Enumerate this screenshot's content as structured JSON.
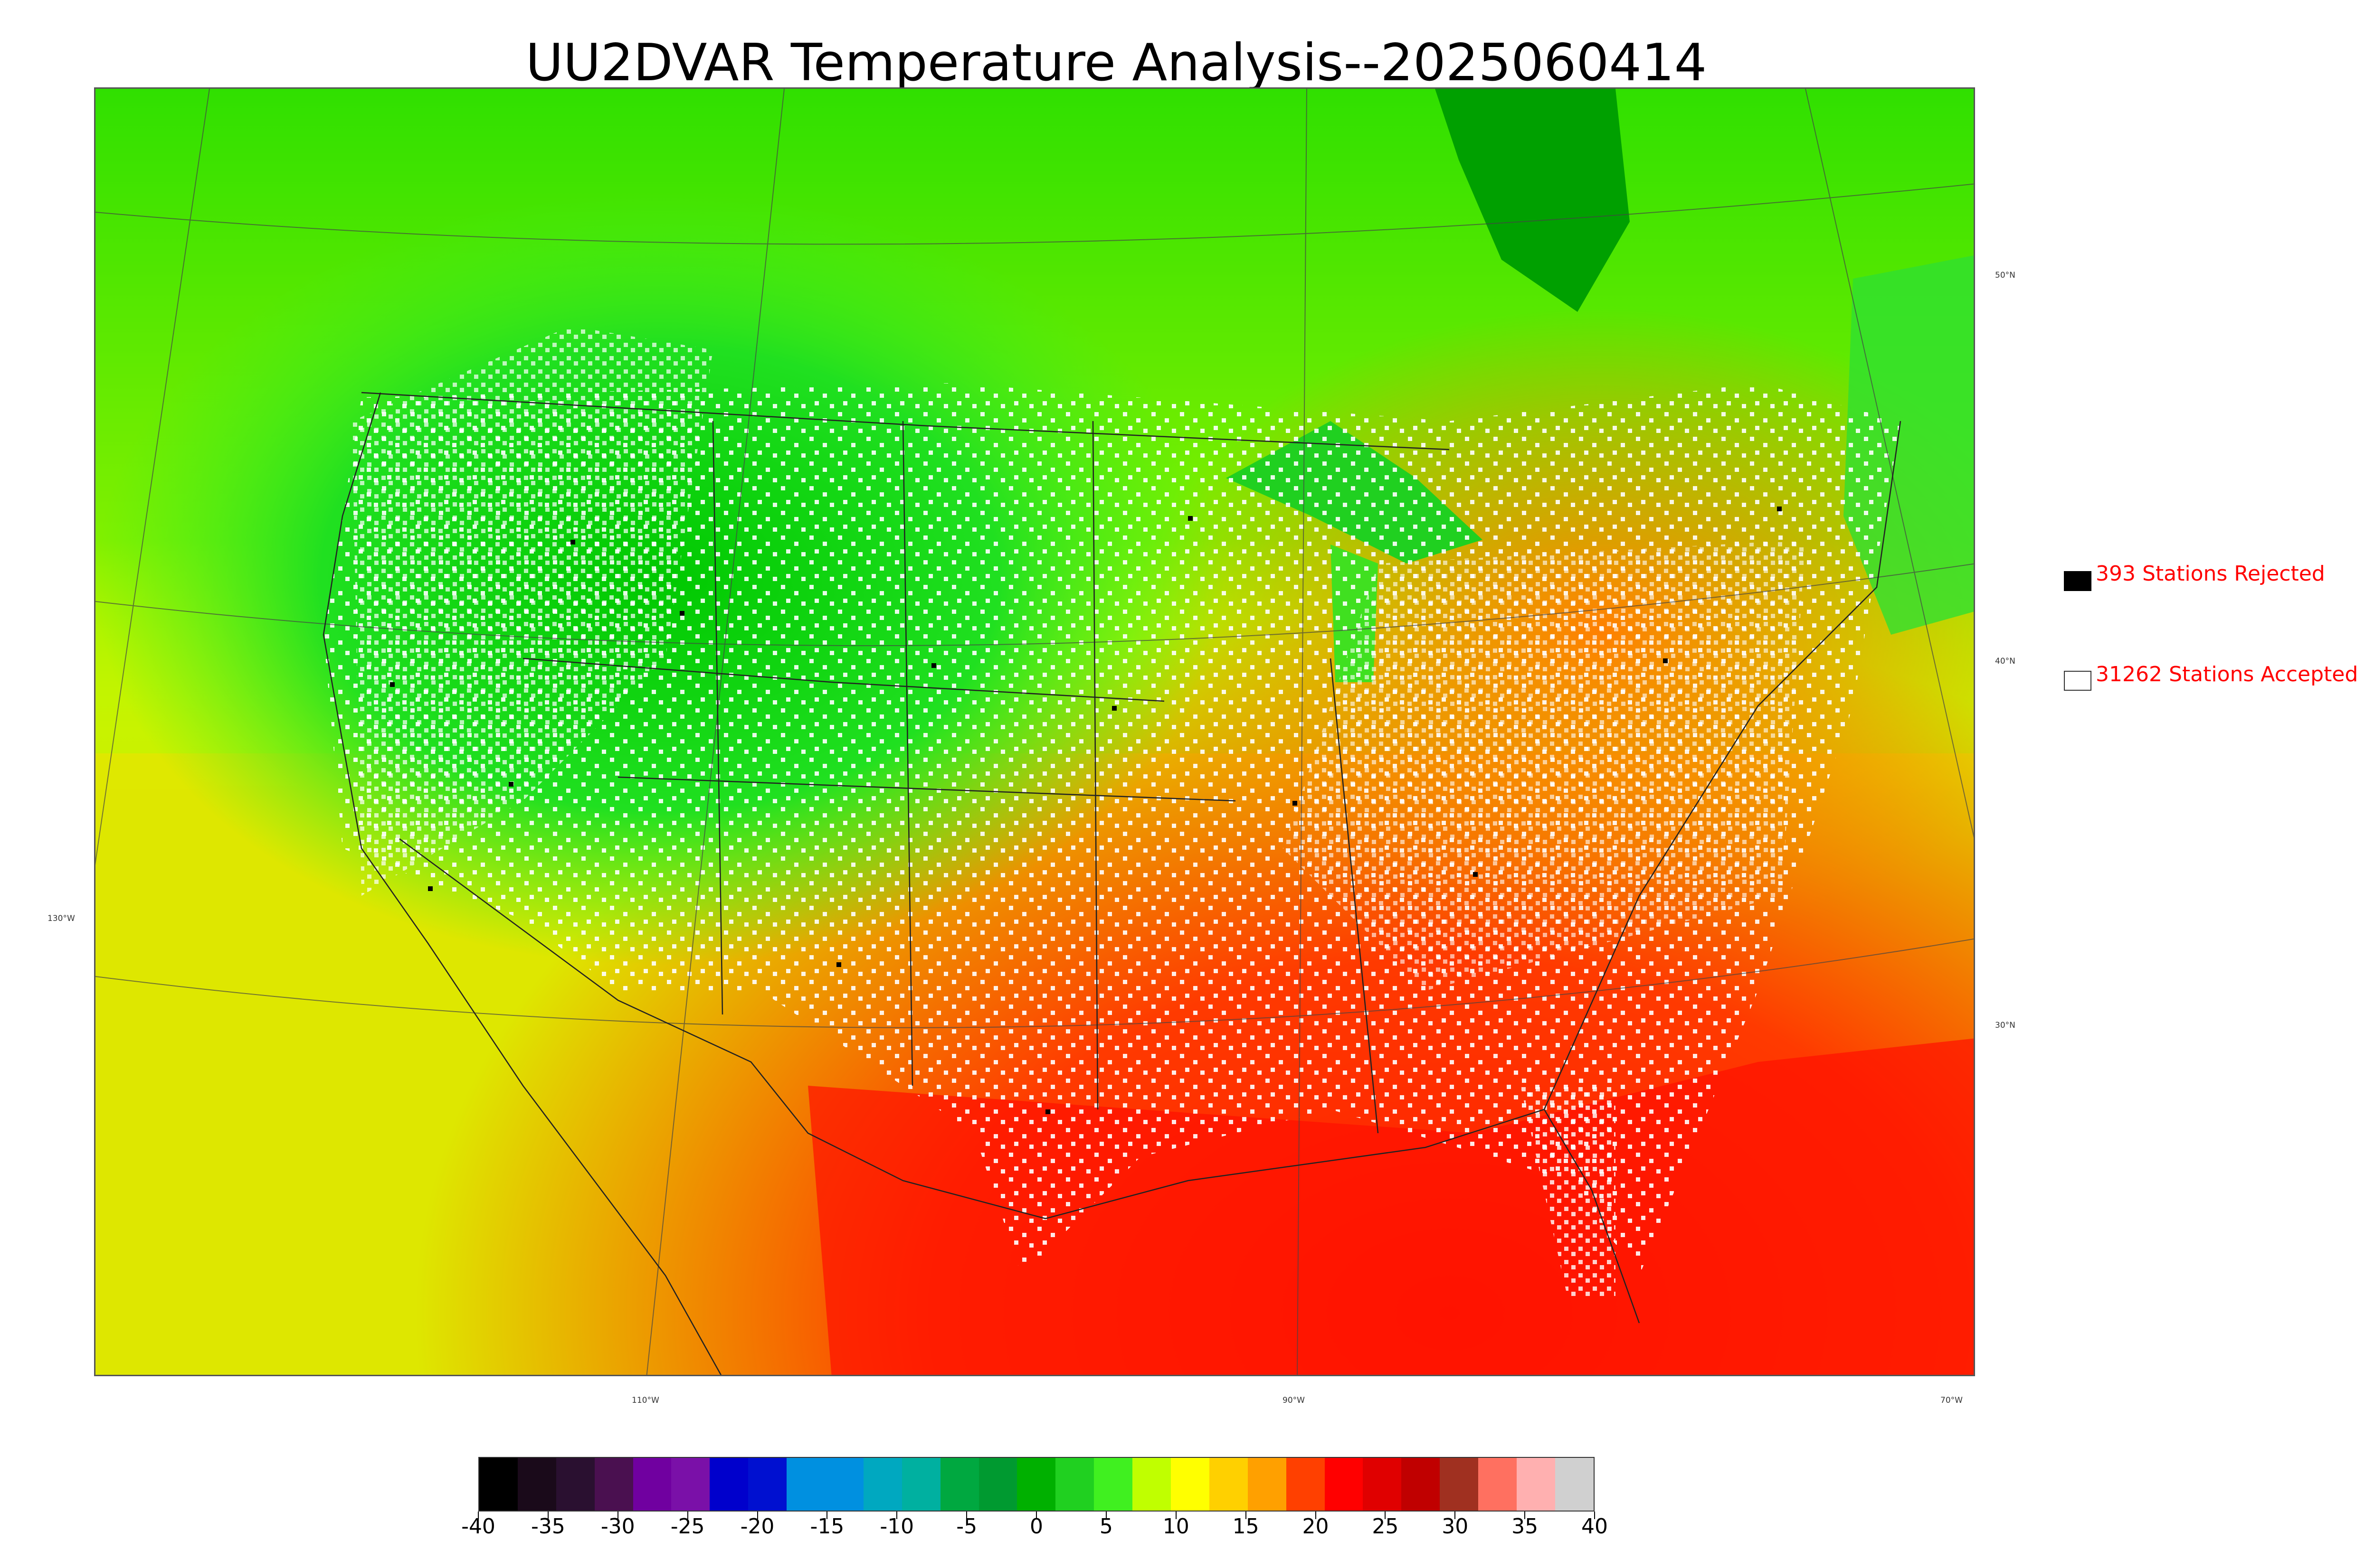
{
  "title": "UU2DVAR Temperature Analysis--2025060414",
  "legend": {
    "rejected": {
      "label": "393 Stations Rejected",
      "color": "#000000"
    },
    "accepted": {
      "label": "31262 Stations Accepted",
      "color": "#ffffff"
    },
    "text_color": "#ff0000"
  },
  "map": {
    "graticule_labels": {
      "lat": [
        "50°N",
        "40°N",
        "30°N"
      ],
      "lon_left": "130°W",
      "lon_bottom": [
        "110°W",
        "90°W",
        "70°W"
      ]
    }
  },
  "colorbar": {
    "min": -40,
    "max": 40,
    "tick_labels": [
      "-40",
      "-35",
      "-30",
      "-25",
      "-20",
      "-15",
      "-10",
      "-5",
      "0",
      "5",
      "10",
      "15",
      "20",
      "25",
      "30",
      "35",
      "40"
    ],
    "colors": [
      "#000000",
      "#1a0a1a",
      "#2a1030",
      "#4a1050",
      "#7000a0",
      "#7a10a8",
      "#0000cc",
      "#0010d0",
      "#0090e0",
      "#0090e0",
      "#00a8c0",
      "#00b0a0",
      "#00a840",
      "#009a30",
      "#00b000",
      "#20d020",
      "#40f020",
      "#c0ff00",
      "#ffff00",
      "#ffd000",
      "#ffa000",
      "#ff4000",
      "#ff0000",
      "#e00000",
      "#c00000",
      "#a03020",
      "#ff7060",
      "#ffb0b0",
      "#d0d0d0"
    ]
  }
}
